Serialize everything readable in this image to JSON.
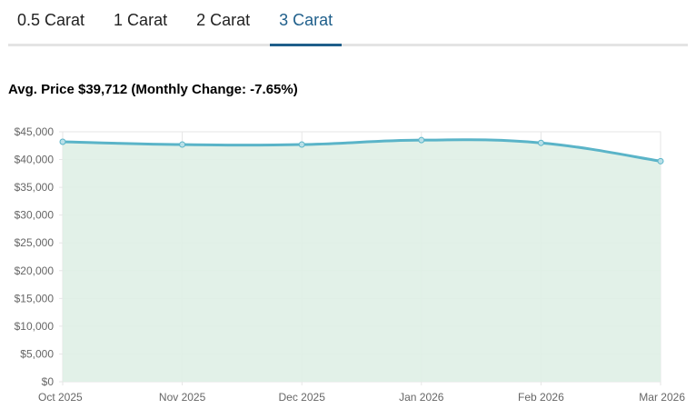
{
  "tabs": [
    {
      "label": "0.5 Carat"
    },
    {
      "label": "1 Carat"
    },
    {
      "label": "2 Carat"
    },
    {
      "label": "3 Carat",
      "active": true
    }
  ],
  "headline": "Avg. Price $39,712 (Monthly Change: -7.65%)",
  "colors": {
    "accent": "#1f5f8b",
    "line": "#5ab4c8",
    "fill": "#dff0e6"
  },
  "chart_data": {
    "type": "area",
    "categories": [
      "Oct 2025",
      "Nov 2025",
      "Dec 2025",
      "Jan 2026",
      "Feb 2026",
      "Mar 2026"
    ],
    "values": [
      43200,
      42700,
      42700,
      43500,
      43002,
      39712
    ],
    "ylim": [
      0,
      45000
    ],
    "yticks": [
      "$0",
      "$5,000",
      "$10,000",
      "$15,000",
      "$20,000",
      "$25,000",
      "$30,000",
      "$35,000",
      "$40,000",
      "$45,000"
    ],
    "grid": true,
    "legend": "none"
  }
}
